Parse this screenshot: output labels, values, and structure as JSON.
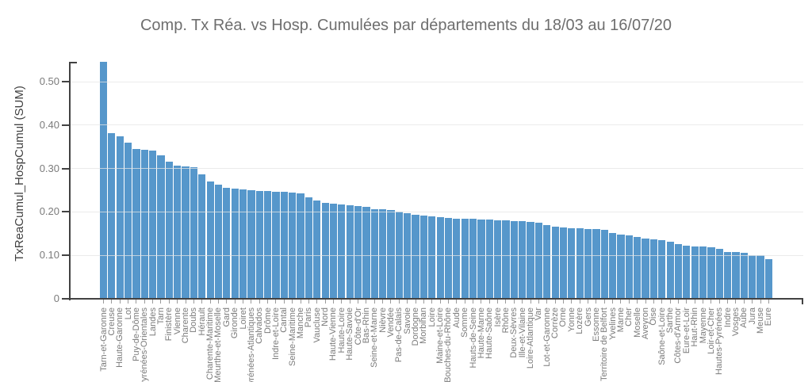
{
  "title": "Comp. Tx Réa. vs Hosp. Cumulées par départements du 18/03 au 16/07/20",
  "y_axis": {
    "label": "TxReaCumul_HospCumul (SUM)",
    "tick_labels": [
      "0.50",
      "0.40",
      "0.30",
      "0.20",
      "0.10",
      "0"
    ],
    "tick_values": [
      0.5,
      0.4,
      0.3,
      0.2,
      0.1,
      0
    ]
  },
  "colors": {
    "bar": "#5697cb",
    "title_text": "#6e6e6e",
    "axis_line": "#424242",
    "tick_text": "#7b7b7b",
    "gridline": "#e4e4e4"
  },
  "chart_data": {
    "type": "bar",
    "title": "Comp. Tx Réa. vs Hosp. Cumulées par départements du 18/03 au 16/07/20",
    "xlabel": "",
    "ylabel": "TxReaCumul_HospCumul (SUM)",
    "ylim": [
      0,
      0.5456
    ],
    "grid": true,
    "legend": false,
    "first_bar_clipped_at_plot_top": true,
    "categories": [
      "Tarn-et-Garonne",
      "Creuse",
      "Haute-Garonne",
      "Lot",
      "Puy-de-Dôme",
      "Pyrénées-Orientales",
      "Landes",
      "Tarn",
      "Finistère",
      "Vienne",
      "Charente",
      "Doubs",
      "Hérault",
      "Charente-Maritime",
      "Meurthe-et-Moselle",
      "Gard",
      "Gironde",
      "Loiret",
      "Pyrénées-Atlantiques",
      "Calvados",
      "Drôme",
      "Indre-et-Loire",
      "Cantal",
      "Seine-Maritime",
      "Manche",
      "Paris",
      "Vaucluse",
      "Nord",
      "Haute-Vienne",
      "Haute-Loire",
      "Haute-Savoie",
      "Côte-d'Or",
      "Bas-Rhin",
      "Seine-et-Marne",
      "Nièvre",
      "Vendée",
      "Pas-de-Calais",
      "Savoie",
      "Dordogne",
      "Morbihan",
      "Loire",
      "Maine-et-Loire",
      "Bouches-du-Rhône",
      "Aude",
      "Somme",
      "Hauts-de-Seine",
      "Haute-Marne",
      "Haute-Saône",
      "Isère",
      "Rhône",
      "Deux-Sèvres",
      "Ille-et-Vilaine",
      "Loire-Atlantique",
      "Var",
      "Lot-et-Garonne",
      "Corrèze",
      "Orne",
      "Yonne",
      "Lozère",
      "Gers",
      "Essonne",
      "Territoire de Belfort",
      "Yvelines",
      "Marne",
      "Cher",
      "Moselle",
      "Aveyron",
      "Oise",
      "Saône-et-Loire",
      "Sarthe",
      "Côtes-d'Armor",
      "Eure-et-Loir",
      "Haut-Rhin",
      "Mayenne",
      "Loir-et-Cher",
      "Hautes-Pyrénées",
      "Indre",
      "Vosges",
      "Aube",
      "Jura",
      "Meuse",
      "Eure"
    ],
    "values": [
      0.55,
      0.381,
      0.374,
      0.36,
      0.344,
      0.343,
      0.342,
      0.331,
      0.315,
      0.307,
      0.305,
      0.303,
      0.287,
      0.27,
      0.262,
      0.256,
      0.253,
      0.251,
      0.25,
      0.249,
      0.248,
      0.247,
      0.246,
      0.245,
      0.242,
      0.234,
      0.226,
      0.221,
      0.219,
      0.217,
      0.215,
      0.214,
      0.211,
      0.207,
      0.206,
      0.205,
      0.201,
      0.197,
      0.193,
      0.191,
      0.19,
      0.188,
      0.186,
      0.185,
      0.185,
      0.184,
      0.183,
      0.182,
      0.181,
      0.18,
      0.179,
      0.178,
      0.177,
      0.176,
      0.169,
      0.166,
      0.164,
      0.163,
      0.162,
      0.161,
      0.16,
      0.158,
      0.152,
      0.148,
      0.146,
      0.143,
      0.138,
      0.136,
      0.135,
      0.131,
      0.126,
      0.123,
      0.121,
      0.12,
      0.119,
      0.115,
      0.108,
      0.107,
      0.105,
      0.101,
      0.1,
      0.092
    ]
  }
}
